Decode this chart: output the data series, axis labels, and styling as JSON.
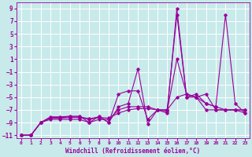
{
  "xlabel": "Windchill (Refroidissement éolien,°C)",
  "bg_color": "#c8eaea",
  "grid_color": "#ffffff",
  "line_color": "#990099",
  "xlim": [
    -0.5,
    23.5
  ],
  "ylim": [
    -11.5,
    10
  ],
  "xticks": [
    0,
    1,
    2,
    3,
    4,
    5,
    6,
    7,
    8,
    9,
    10,
    11,
    12,
    13,
    14,
    15,
    16,
    17,
    18,
    19,
    20,
    21,
    22,
    23
  ],
  "yticks": [
    -11,
    -9,
    -7,
    -5,
    -3,
    -1,
    1,
    3,
    5,
    7,
    9
  ],
  "s1": [
    -11,
    -11,
    -9,
    -8.3,
    -8.3,
    -8.2,
    -8.2,
    -8.5,
    -8.2,
    -8.3,
    -7.5,
    -7,
    -6.8,
    -6.8,
    -7,
    -7.2,
    1,
    -4.5,
    -5,
    -4.5,
    -7,
    -7,
    -7,
    -7
  ],
  "s2": [
    -11,
    -11,
    -9,
    -8.2,
    -8.2,
    -8.1,
    -8.1,
    -8.4,
    -8.1,
    -9,
    -6.5,
    -6,
    -0.5,
    -9.2,
    -7,
    -7.5,
    9,
    -5,
    -5,
    -6,
    -6.5,
    -7,
    -7,
    -7
  ],
  "s3": [
    -11,
    -11,
    -9,
    -8.1,
    -8.1,
    -8.0,
    -8.0,
    -9,
    -8.0,
    -9,
    -4.5,
    -4,
    -4,
    -8.5,
    -7,
    -7,
    8,
    -5,
    -4.5,
    -6,
    -6.5,
    8,
    -6,
    -7.5
  ],
  "s4": [
    -11,
    -11,
    -9,
    -8.5,
    -8.5,
    -8.5,
    -8.5,
    -9,
    -8.5,
    -8.5,
    -7,
    -6.5,
    -6.5,
    -6.5,
    -7,
    -7,
    -5,
    -4.5,
    -5,
    -7,
    -7,
    -7,
    -7,
    -7.5
  ]
}
